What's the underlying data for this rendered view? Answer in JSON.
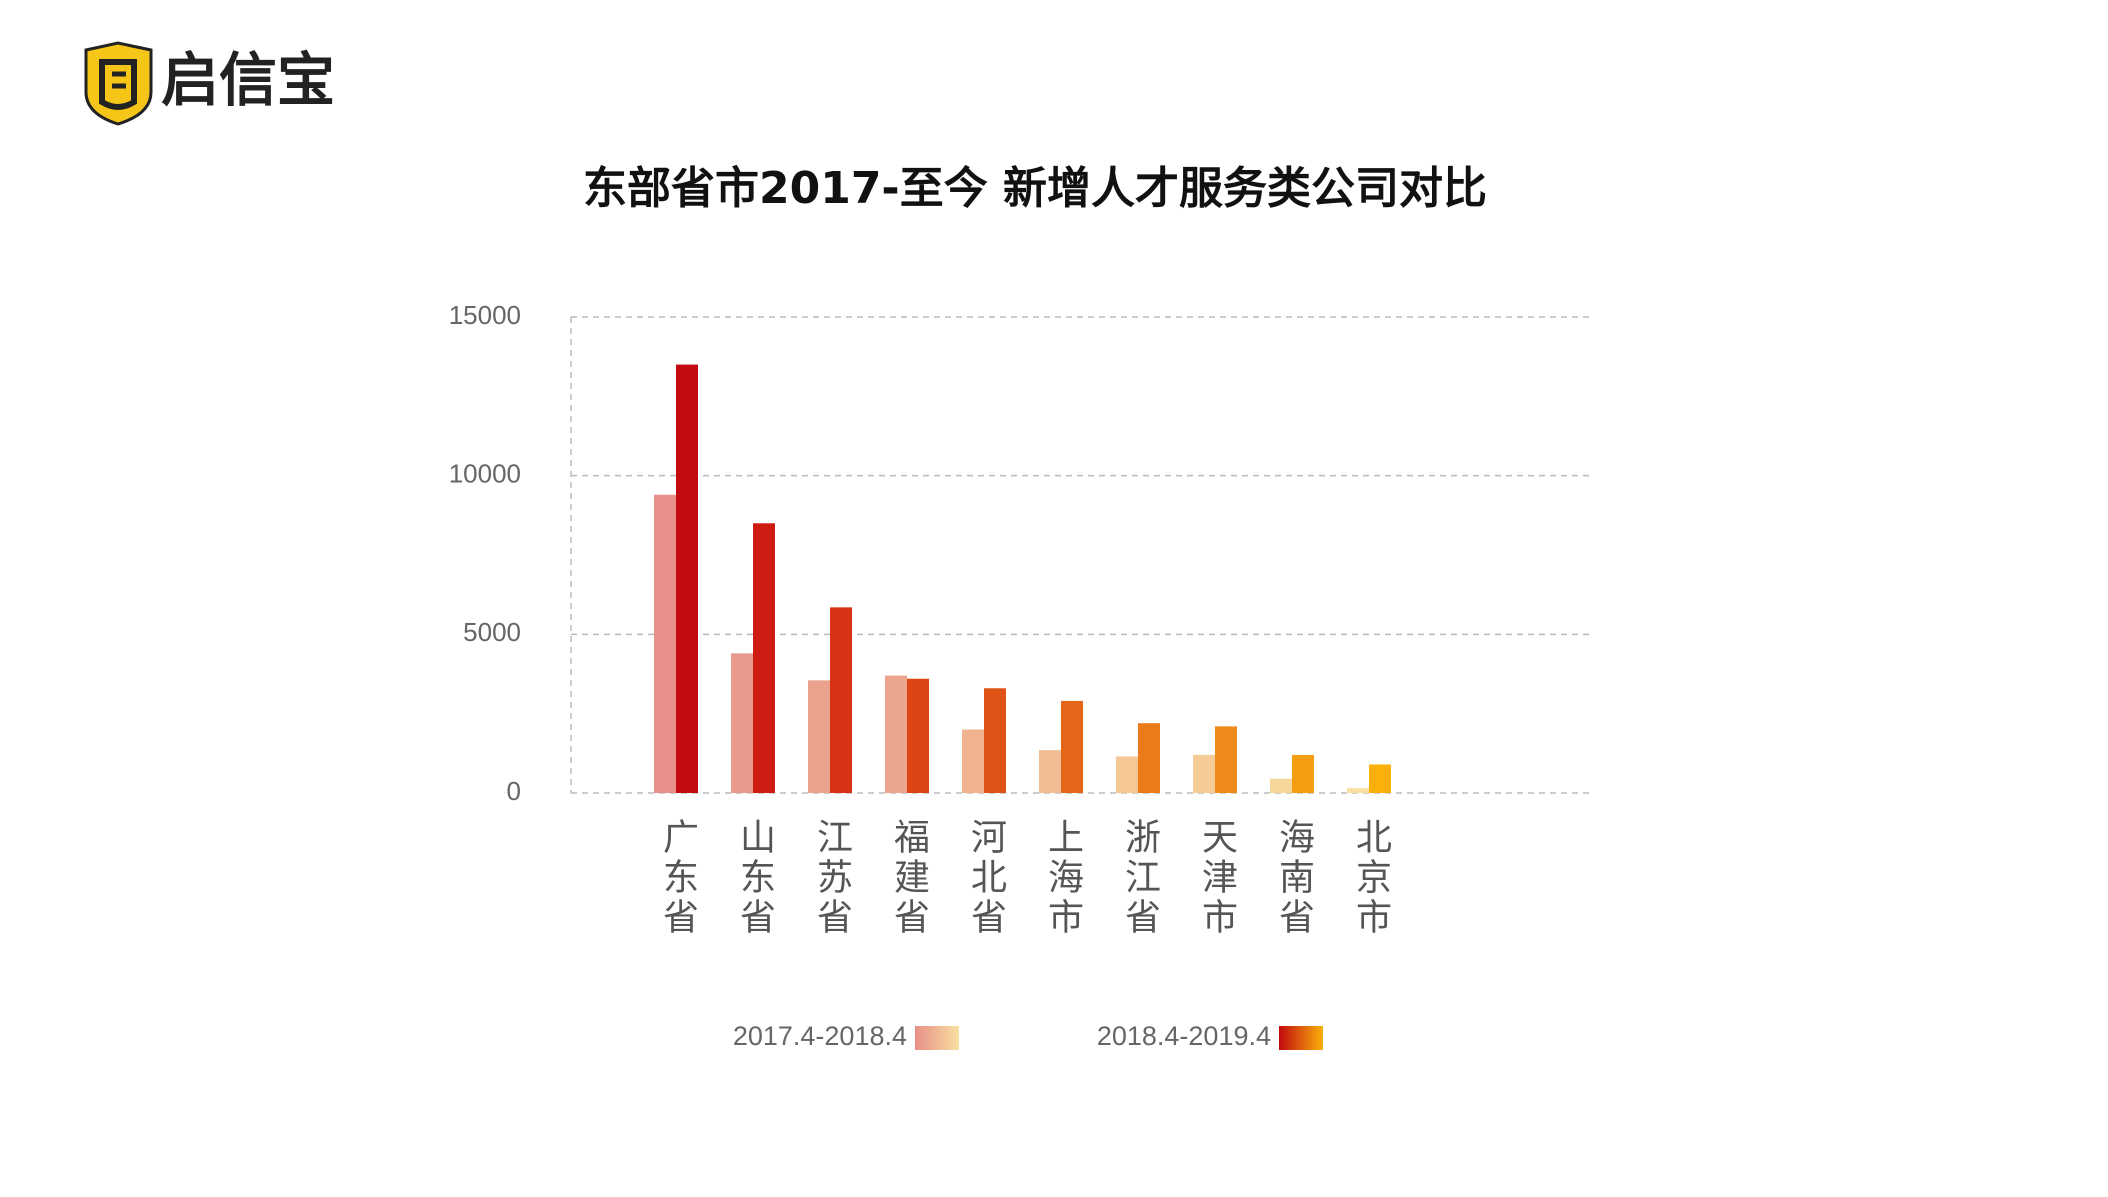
{
  "brand": "启信宝",
  "chart_data": {
    "type": "bar",
    "title": "东部省市2017-至今 新增人才服务类公司对比",
    "categories": [
      "广东省",
      "山东省",
      "江苏省",
      "福建省",
      "河北省",
      "上海市",
      "浙江省",
      "天津市",
      "海南省",
      "北京市"
    ],
    "series": [
      {
        "name": "2017.4-2018.4",
        "values": [
          9400,
          4400,
          3550,
          3700,
          2000,
          1350,
          1150,
          1200,
          450,
          150
        ],
        "colors": [
          "#e8908a",
          "#e8998c",
          "#eba28d",
          "#eda68e",
          "#f0b38f",
          "#f2bd92",
          "#f4c794",
          "#f5cc95",
          "#f7d69a",
          "#f8dfa0"
        ]
      },
      {
        "name": "2018.4-2019.4",
        "values": [
          13500,
          8500,
          5850,
          3600,
          3300,
          2900,
          2200,
          2100,
          1200,
          900
        ],
        "colors": [
          "#c20a10",
          "#cf1c12",
          "#d73214",
          "#dc4515",
          "#e05316",
          "#e56618",
          "#ea7a1a",
          "#ee8a1a",
          "#f59d12",
          "#f9b00a"
        ]
      }
    ],
    "ylim": [
      0,
      15000
    ],
    "yticks": [
      0,
      5000,
      10000,
      15000
    ],
    "grid": true
  }
}
